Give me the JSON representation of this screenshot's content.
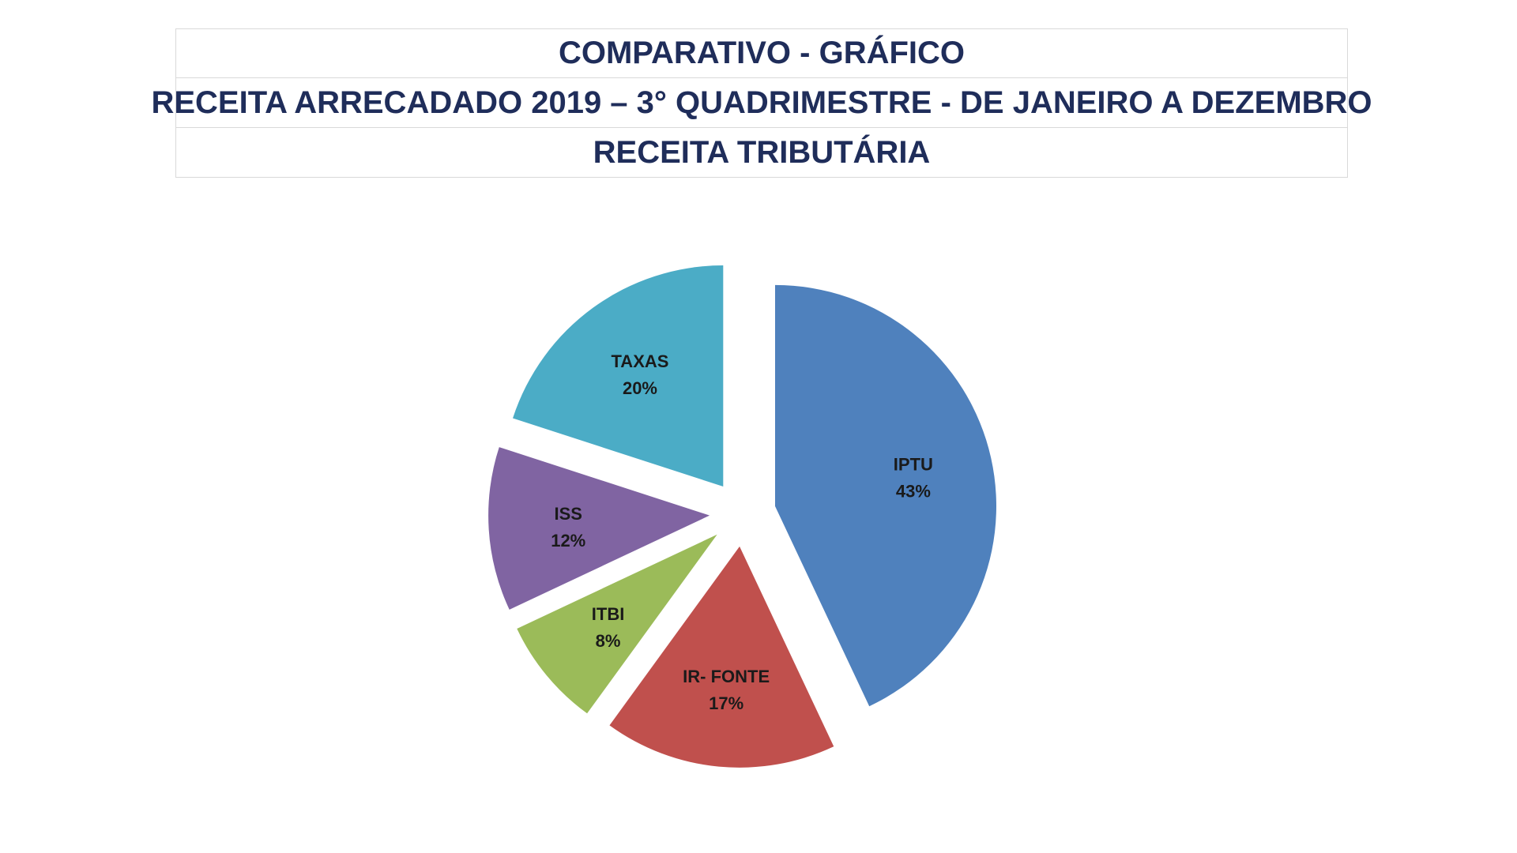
{
  "header": {
    "line1": "COMPARATIVO - GRÁFICO",
    "line2": "RECEITA ARRECADADO  2019 – 3° QUADRIMESTRE - DE JANEIRO A DEZEMBRO",
    "line3": "RECEITA TRIBUTÁRIA"
  },
  "chart_data": {
    "type": "pie",
    "title": "RECEITA TRIBUTÁRIA",
    "exploded": true,
    "start": "12 o'clock, clockwise",
    "slices": [
      {
        "label": "IPTU",
        "value": 43,
        "value_label": "43%",
        "color": "#4f81bd"
      },
      {
        "label": "IR- FONTE",
        "value": 17,
        "value_label": "17%",
        "color": "#c0504d"
      },
      {
        "label": "ITBI",
        "value": 8,
        "value_label": "8%",
        "color": "#9bbb59"
      },
      {
        "label": "ISS",
        "value": 12,
        "value_label": "12%",
        "color": "#8064a2"
      },
      {
        "label": "TAXAS",
        "value": 20,
        "value_label": "20%",
        "color": "#4bacc6"
      }
    ]
  }
}
